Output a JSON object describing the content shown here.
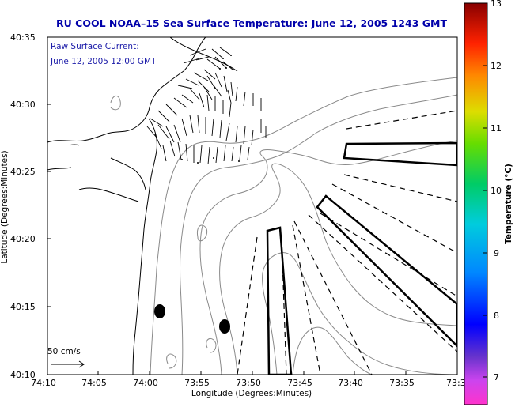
{
  "title": "RU COOL  NOAA–15  Sea Surface Temperature:  June 12, 2005 1243 GMT",
  "colors": {
    "title": "#0000aa",
    "annotation": "#1a1aa8",
    "contour": "#8a8a8a",
    "coast": "#000000"
  },
  "annotation": {
    "line1": "Raw Surface Current:",
    "line2": "June 12, 2005 12:00 GMT"
  },
  "scale": {
    "label": "50 cm/s"
  },
  "axes": {
    "xlabel": "Longitude (Degrees:Minutes)",
    "ylabel": "Latitude (Degrees:Minutes)",
    "x_ticks": [
      "74:10",
      "74:05",
      "74:00",
      "73:55",
      "73:50",
      "73:45",
      "73:40",
      "73:35",
      "73:3"
    ],
    "y_ticks": [
      "40:35",
      "40:30",
      "40:25",
      "40:20",
      "40:15",
      "40:10"
    ]
  },
  "colorbar": {
    "label": "Temperature (°C)",
    "ticks": [
      "13",
      "12",
      "11",
      "10",
      "9",
      "8",
      "7"
    ]
  }
}
